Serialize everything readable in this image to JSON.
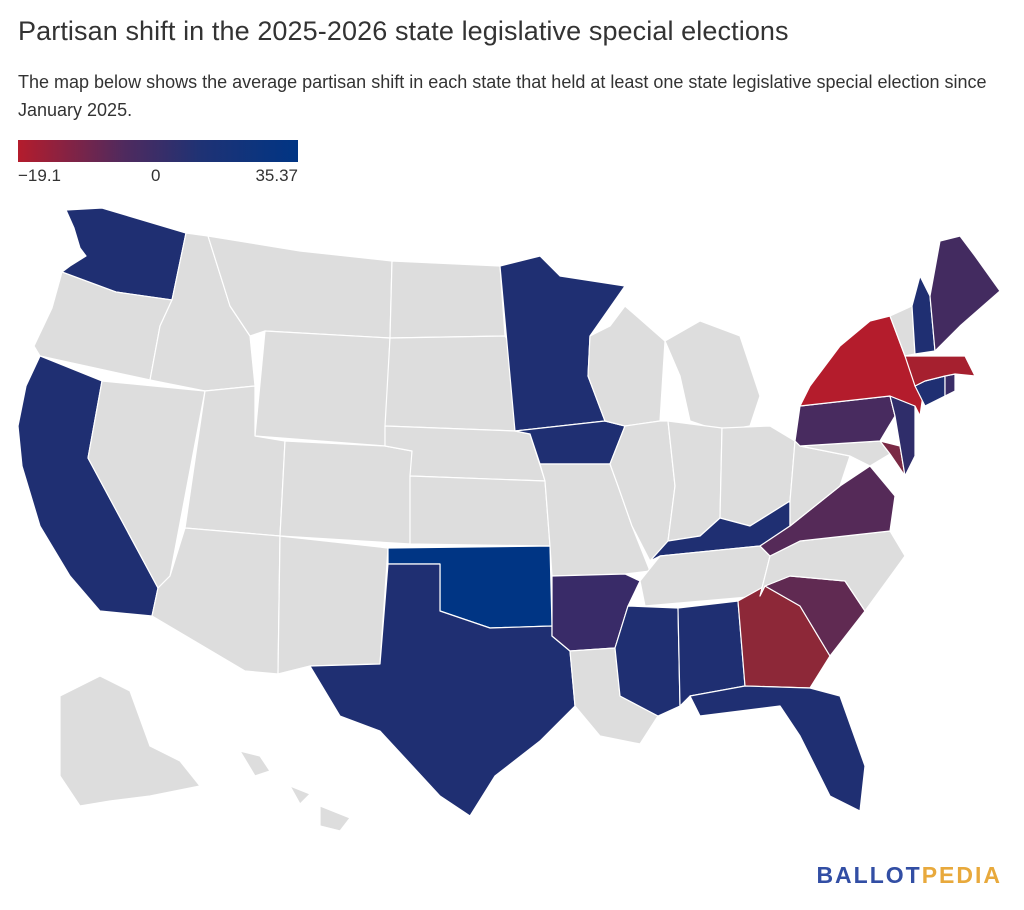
{
  "title": "Partisan shift in the 2025-2026 state legislative special elections",
  "subtitle": "The map below shows the average partisan shift in each state that held at least one state legislative special election since January 2025.",
  "legend": {
    "min_label": "−19.1",
    "mid_label": "0",
    "max_label": "35.37",
    "min": -19.1,
    "max": 35.37,
    "colors": [
      "#b41c2c",
      "#4f2a5e",
      "#1f3274",
      "#003584"
    ]
  },
  "map": {
    "no_data_color": "#dddddd",
    "states_with_data": [
      {
        "state": "Washington",
        "color": "#1f2f72"
      },
      {
        "state": "California",
        "color": "#1f2f72"
      },
      {
        "state": "Minnesota",
        "color": "#1f2f72"
      },
      {
        "state": "Iowa",
        "color": "#1f2f72"
      },
      {
        "state": "Oklahoma",
        "color": "#003584"
      },
      {
        "state": "Texas",
        "color": "#1f2f72"
      },
      {
        "state": "Arkansas",
        "color": "#392b68"
      },
      {
        "state": "Kentucky",
        "color": "#1f2f72"
      },
      {
        "state": "Mississippi",
        "color": "#1f2f72"
      },
      {
        "state": "Alabama",
        "color": "#1f2f72"
      },
      {
        "state": "Georgia",
        "color": "#8d2838"
      },
      {
        "state": "South Carolina",
        "color": "#602a52"
      },
      {
        "state": "Florida",
        "color": "#1f2f72"
      },
      {
        "state": "Virginia",
        "color": "#552a58"
      },
      {
        "state": "Pennsylvania",
        "color": "#482b5f"
      },
      {
        "state": "New Jersey",
        "color": "#2f2d6a"
      },
      {
        "state": "Delaware",
        "color": "#7a2944"
      },
      {
        "state": "New York",
        "color": "#b41c2c"
      },
      {
        "state": "Connecticut",
        "color": "#1f2f72"
      },
      {
        "state": "Massachusetts",
        "color": "#a6202f"
      },
      {
        "state": "New Hampshire",
        "color": "#1f2f72"
      },
      {
        "state": "Maine",
        "color": "#432b60"
      },
      {
        "state": "Rhode Island",
        "color": "#3a2c66"
      }
    ]
  },
  "logo": {
    "part1": "BALLOT",
    "part2": "PEDIA"
  }
}
